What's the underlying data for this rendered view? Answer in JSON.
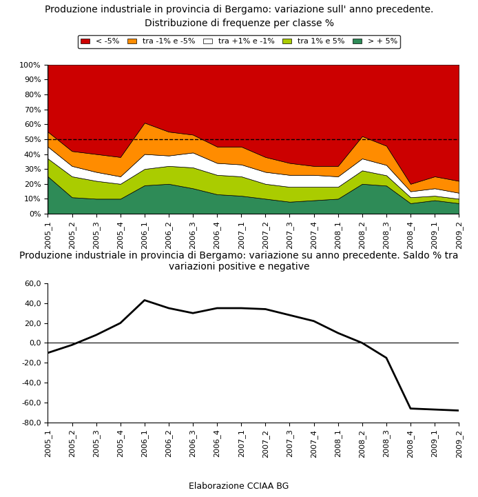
{
  "chart_data": [
    {
      "type": "area",
      "stacked": true,
      "title": "Produzione industriale in provincia di Bergamo: variazione sull' anno precedente.",
      "subtitle": "Distribuzione di frequenze per classe %",
      "categories": [
        "2005_1",
        "2005_2",
        "2005_3",
        "2005_4",
        "2006_1",
        "2006_2",
        "2006_3",
        "2006_4",
        "2007_1",
        "2007_2",
        "2007_3",
        "2007_4",
        "2008_1",
        "2008_2",
        "2008_3",
        "2008_4",
        "2009_1",
        "2009_2"
      ],
      "series": [
        {
          "name": "> + 5%",
          "color": "#2E8B57",
          "values": [
            25,
            11,
            10,
            10,
            19,
            20,
            17,
            13,
            12,
            10,
            8,
            9,
            10,
            20,
            18.81188118811881,
            7,
            9,
            7
          ]
        },
        {
          "name": "tra 1% e 5%",
          "color": "#AACC00",
          "values": [
            12,
            14,
            12,
            10,
            11,
            12,
            14,
            13,
            13,
            10,
            10,
            9,
            8,
            9,
            6.930693069306931,
            4,
            3,
            3
          ]
        },
        {
          "name": "tra +1% e -1%",
          "color": "#FFFFFF",
          "values": [
            8,
            7,
            6,
            5,
            10,
            7,
            10,
            8,
            8,
            8,
            8,
            8,
            7,
            8,
            6.930693069306931,
            4,
            5,
            4
          ]
        },
        {
          "name": "tra -1% e -5%",
          "color": "#FF8C00",
          "values": [
            10,
            10,
            12,
            13,
            21,
            16,
            12,
            11,
            12,
            10,
            8,
            6,
            7,
            15,
            12.871287128712872,
            5,
            8,
            8
          ]
        },
        {
          "name": "< -5%",
          "color": "#CC0000",
          "values": [
            45,
            58,
            60,
            62,
            39,
            45,
            47,
            55,
            55,
            62,
            66,
            68,
            68,
            48,
            54.45544554455446,
            80,
            75,
            78
          ]
        }
      ],
      "hline": 50,
      "ylim": [
        0,
        100
      ],
      "yticks": [
        {
          "value": 0,
          "label": "0%"
        },
        {
          "value": 10,
          "label": "10%"
        },
        {
          "value": 20,
          "label": "20%"
        },
        {
          "value": 30,
          "label": "30%"
        },
        {
          "value": 40,
          "label": "40%"
        },
        {
          "value": 50,
          "label": "50%"
        },
        {
          "value": 60,
          "label": "60%"
        },
        {
          "value": 70,
          "label": "70%"
        },
        {
          "value": 80,
          "label": "80%"
        },
        {
          "value": 90,
          "label": "90%"
        },
        {
          "value": 100,
          "label": "100%"
        }
      ],
      "legend": "upper center",
      "grid": false
    },
    {
      "type": "line",
      "title": "Produzione industriale in provincia di Bergamo: variazione su anno precedente. Saldo % tra\nvariazioni positive e negative",
      "categories": [
        "2005_1",
        "2005_2",
        "2005_3",
        "2005_4",
        "2006_1",
        "2006_2",
        "2006_3",
        "2006_4",
        "2007_1",
        "2007_2",
        "2007_3",
        "2007_4",
        "2008_1",
        "2008_2",
        "2008_3",
        "2008_4",
        "2009_1",
        "2009_2"
      ],
      "values": [
        -10,
        -2,
        8,
        20,
        43,
        35,
        30,
        35,
        35,
        34,
        28,
        22,
        10,
        0,
        -15,
        -66,
        -67,
        -68
      ],
      "color": "#000000",
      "hline": 0,
      "ylim": [
        -80,
        60
      ],
      "yticks": [
        {
          "value": -80,
          "label": "-80,0"
        },
        {
          "value": -60,
          "label": "-60,0"
        },
        {
          "value": -40,
          "label": "-40,0"
        },
        {
          "value": -20,
          "label": "-20,0"
        },
        {
          "value": 0,
          "label": "0,0"
        },
        {
          "value": 20,
          "label": "20,0"
        },
        {
          "value": 40,
          "label": "40,0"
        },
        {
          "value": 60,
          "label": "60,0"
        }
      ],
      "grid": false,
      "footer": "Elaborazione CCIAA BG"
    }
  ]
}
